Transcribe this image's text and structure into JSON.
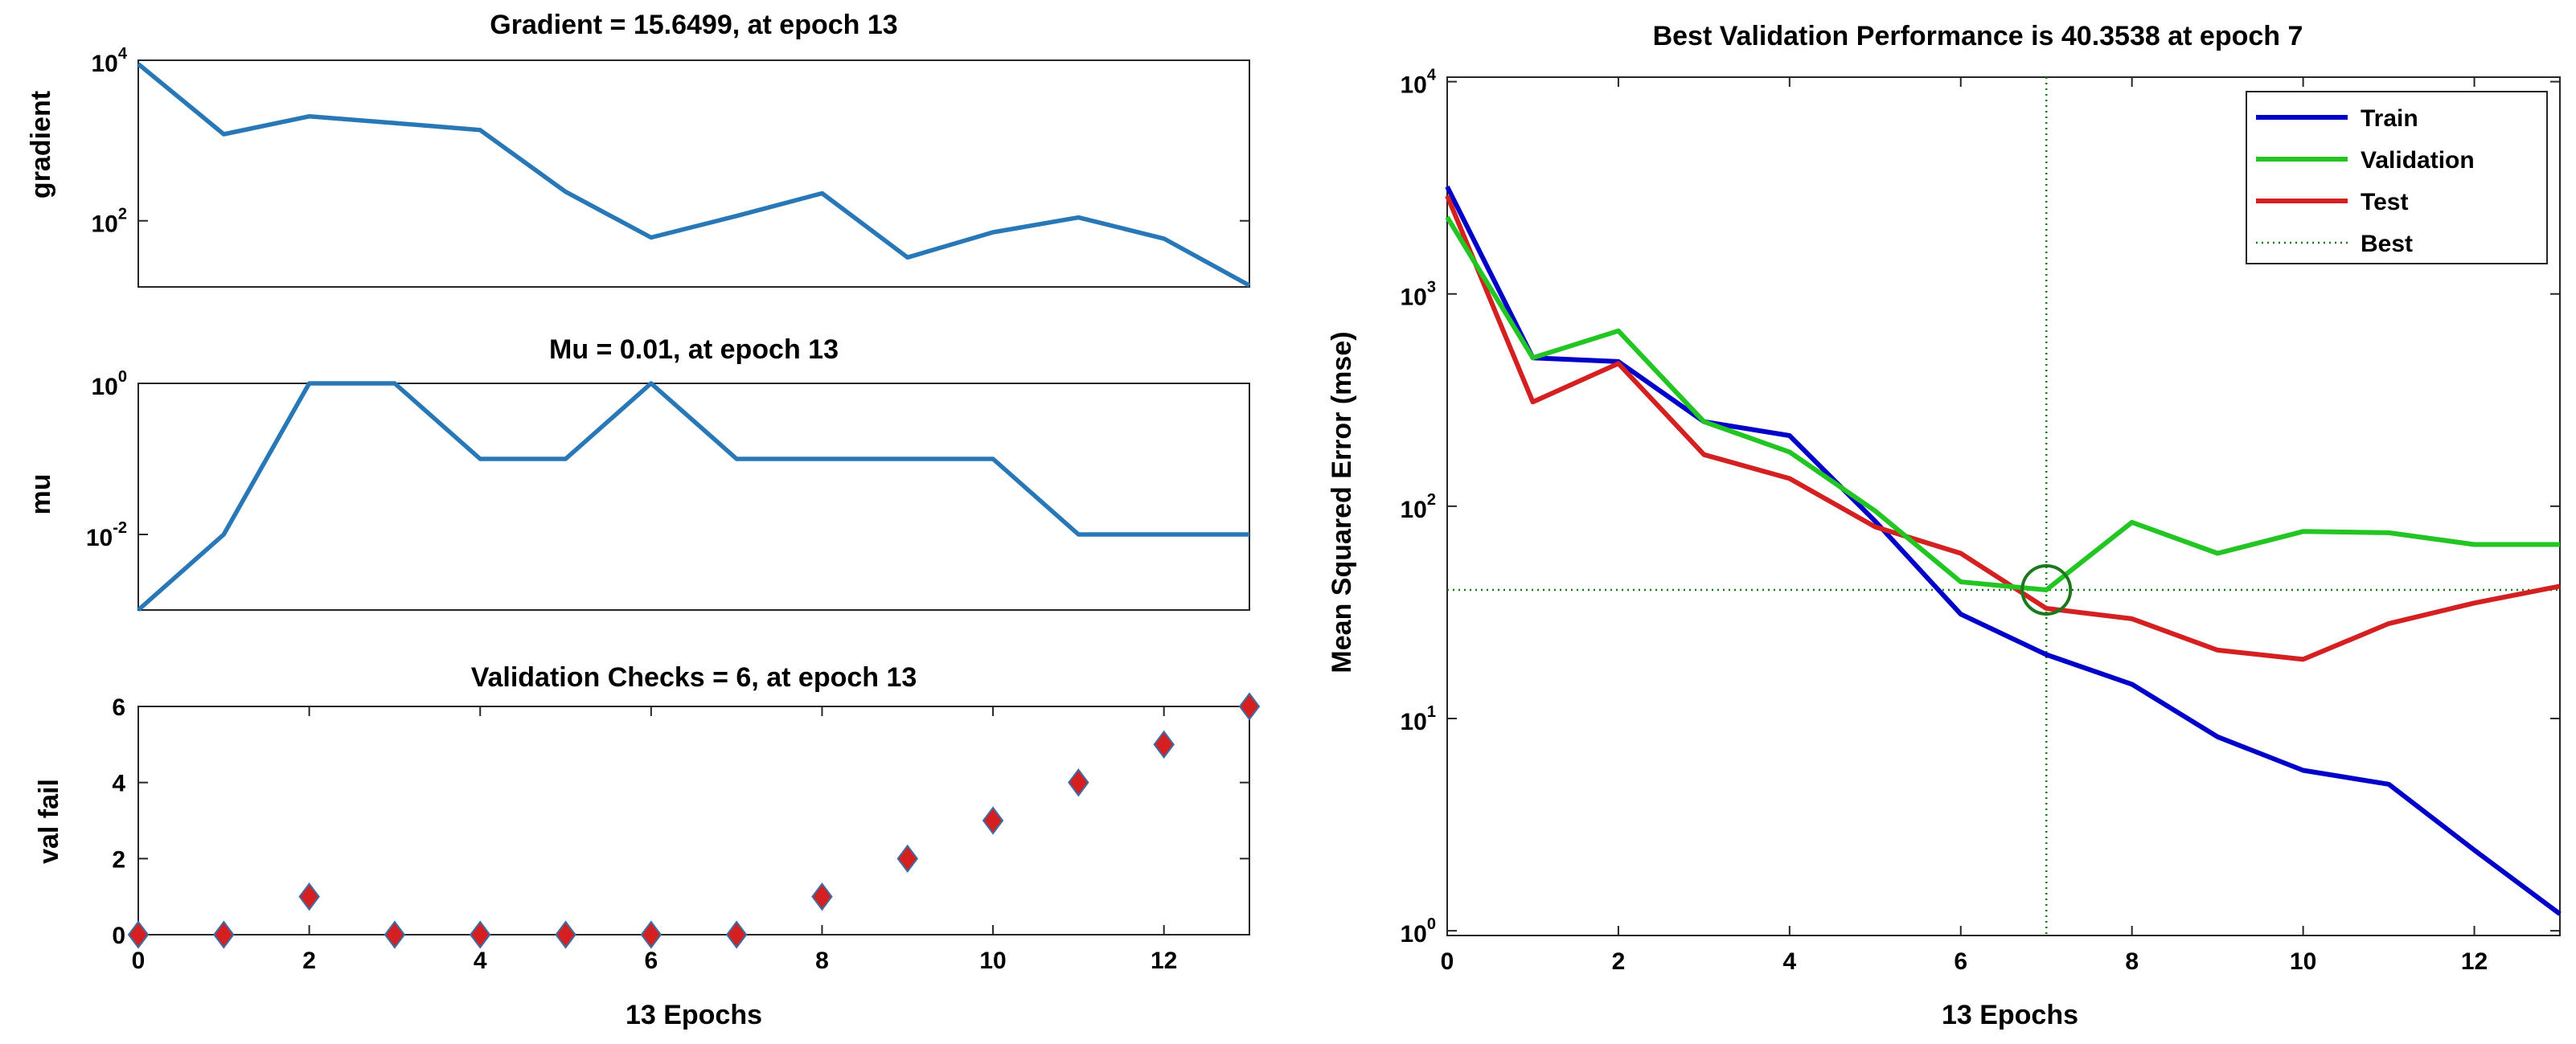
{
  "chart_data": [
    {
      "id": "gradient",
      "type": "line",
      "title": "Gradient = 15.6499, at epoch 13",
      "xlabel": "",
      "ylabel": "gradient",
      "yscale": "log",
      "xlim": [
        0,
        13
      ],
      "ylim": [
        15,
        10000
      ],
      "yticks": [
        {
          "base": "10",
          "exp": "2",
          "value": 100
        },
        {
          "base": "10",
          "exp": "4",
          "value": 10000
        }
      ],
      "xticks": [],
      "color": "#2878b8",
      "x": [
        0,
        1,
        2,
        3,
        4,
        5,
        6,
        7,
        8,
        9,
        10,
        11,
        12,
        13
      ],
      "y": [
        9000,
        1200,
        2000,
        1650,
        1350,
        230,
        62,
        115,
        220,
        35,
        72,
        110,
        60,
        15.6499
      ]
    },
    {
      "id": "mu",
      "type": "line",
      "title": "Mu = 0.01, at epoch 13",
      "xlabel": "",
      "ylabel": "mu",
      "yscale": "log",
      "xlim": [
        0,
        13
      ],
      "ylim": [
        0.001,
        1
      ],
      "yticks": [
        {
          "base": "10",
          "exp": "-2",
          "value": 0.01
        },
        {
          "base": "10",
          "exp": "0",
          "value": 1
        }
      ],
      "xticks": [],
      "color": "#2878b8",
      "x": [
        0,
        1,
        2,
        3,
        4,
        5,
        6,
        7,
        8,
        9,
        10,
        11,
        12,
        13
      ],
      "y": [
        0.001,
        0.01,
        1,
        1,
        0.1,
        0.1,
        1,
        0.1,
        0.1,
        0.1,
        0.1,
        0.01,
        0.01,
        0.01
      ]
    },
    {
      "id": "valfail",
      "type": "scatter",
      "title": "Validation Checks = 6, at epoch 13",
      "xlabel": "13 Epochs",
      "ylabel": "val fail",
      "yscale": "linear",
      "xlim": [
        0,
        13
      ],
      "ylim": [
        0,
        6
      ],
      "yticks": [
        {
          "label": "0",
          "value": 0
        },
        {
          "label": "2",
          "value": 2
        },
        {
          "label": "4",
          "value": 4
        },
        {
          "label": "6",
          "value": 6
        }
      ],
      "xticks": [
        {
          "label": "0",
          "value": 0
        },
        {
          "label": "2",
          "value": 2
        },
        {
          "label": "4",
          "value": 4
        },
        {
          "label": "6",
          "value": 6
        },
        {
          "label": "8",
          "value": 8
        },
        {
          "label": "10",
          "value": 10
        },
        {
          "label": "12",
          "value": 12
        }
      ],
      "marker": "diamond",
      "marker_fill": "#d42020",
      "marker_edge": "#3a6ea5",
      "x": [
        0,
        1,
        2,
        3,
        4,
        5,
        6,
        7,
        8,
        9,
        10,
        11,
        12,
        13
      ],
      "y": [
        0,
        0,
        1,
        0,
        0,
        0,
        0,
        0,
        1,
        2,
        3,
        4,
        5,
        6
      ]
    },
    {
      "id": "performance",
      "type": "line",
      "title": "Best Validation Performance is 40.3538 at epoch 7",
      "xlabel": "13 Epochs",
      "ylabel": "Mean Squared Error  (mse)",
      "yscale": "log",
      "xlim": [
        0,
        13
      ],
      "ylim": [
        0.95,
        10500
      ],
      "yticks": [
        {
          "base": "10",
          "exp": "0",
          "value": 1
        },
        {
          "base": "10",
          "exp": "1",
          "value": 10
        },
        {
          "base": "10",
          "exp": "2",
          "value": 100
        },
        {
          "base": "10",
          "exp": "3",
          "value": 1000
        },
        {
          "base": "10",
          "exp": "4",
          "value": 10000
        }
      ],
      "xticks": [
        {
          "label": "0",
          "value": 0
        },
        {
          "label": "2",
          "value": 2
        },
        {
          "label": "4",
          "value": 4
        },
        {
          "label": "6",
          "value": 6
        },
        {
          "label": "8",
          "value": 8
        },
        {
          "label": "10",
          "value": 10
        },
        {
          "label": "12",
          "value": 12
        }
      ],
      "best": {
        "epoch": 7,
        "value": 40.3538,
        "circle_color": "#1a7a1a",
        "line_color": "#1a7a1a"
      },
      "legend": {
        "placement": "top-right"
      },
      "series": [
        {
          "name": "Train",
          "color": "#0000c8",
          "x": [
            0,
            1,
            2,
            3,
            4,
            5,
            6,
            7,
            8,
            9,
            10,
            11,
            12,
            13
          ],
          "y": [
            3200,
            500,
            480,
            250,
            215,
            85,
            31,
            20,
            14.5,
            8.2,
            5.7,
            4.9,
            2.4,
            1.2
          ]
        },
        {
          "name": "Validation",
          "color": "#22c522",
          "x": [
            0,
            1,
            2,
            3,
            4,
            5,
            6,
            7,
            8,
            9,
            10,
            11,
            12,
            13
          ],
          "y": [
            2300,
            500,
            670,
            250,
            180,
            95,
            44,
            40.3538,
            84,
            60,
            76,
            75,
            66,
            66
          ]
        },
        {
          "name": "Test",
          "color": "#d42020",
          "x": [
            0,
            1,
            2,
            3,
            4,
            5,
            6,
            7,
            8,
            9,
            10,
            11,
            12,
            13
          ],
          "y": [
            2900,
            310,
            470,
            175,
            135,
            80,
            60,
            33,
            29.5,
            21,
            19,
            28,
            35,
            42
          ]
        },
        {
          "name": "Best",
          "color": "#1a7a1a",
          "style": "dotted"
        }
      ]
    }
  ]
}
